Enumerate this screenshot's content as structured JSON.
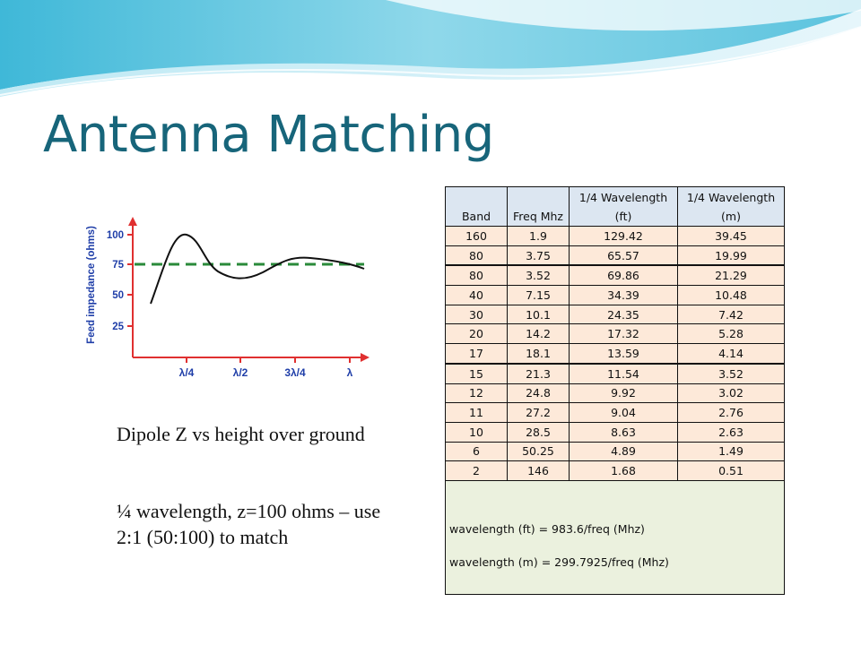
{
  "slide": {
    "title": "Antenna Matching",
    "caption_line1": "Dipole Z vs height over ground",
    "caption_line2": "¼ wavelength, z=100 ohms – use 2:1 (50:100) to match"
  },
  "graph": {
    "ylabel": "Feed impedance (ohms)",
    "yticks": [
      "100",
      "75",
      "50",
      "25"
    ],
    "xticks": [
      "λ/4",
      "λ/2",
      "3λ/4",
      "λ"
    ],
    "colors": {
      "axis": "#e03030",
      "curve": "#111111",
      "reference": "#2a8a3a",
      "labels": "#1f3ea8"
    }
  },
  "table": {
    "header": {
      "band": "Band",
      "freq": "Freq Mhz",
      "ft_line1": "1/4 Wavelength",
      "ft_line2": "(ft)",
      "m_line1": "1/4 Wavelength",
      "m_line2": "(m)"
    },
    "rows": [
      [
        "160",
        "1.9",
        "129.42",
        "39.45"
      ],
      [
        "80",
        "3.75",
        "65.57",
        "19.99"
      ],
      [
        "80",
        "3.52",
        "69.86",
        "21.29"
      ],
      [
        "40",
        "7.15",
        "34.39",
        "10.48"
      ],
      [
        "30",
        "10.1",
        "24.35",
        "7.42"
      ],
      [
        "20",
        "14.2",
        "17.32",
        "5.28"
      ],
      [
        "17",
        "18.1",
        "13.59",
        "4.14"
      ],
      [
        "15",
        "21.3",
        "11.54",
        "3.52"
      ],
      [
        "12",
        "24.8",
        "9.92",
        "3.02"
      ],
      [
        "11",
        "27.2",
        "9.04",
        "2.76"
      ],
      [
        "10",
        "28.5",
        "8.63",
        "2.63"
      ],
      [
        "6",
        "50.25",
        "4.89",
        "1.49"
      ],
      [
        "2",
        "146",
        "1.68",
        "0.51"
      ]
    ],
    "note_ft": "wavelength (ft) = 983.6/freq (Mhz)",
    "note_m": "wavelength (m) = 299.7925/freq (Mhz)"
  },
  "colors": {
    "title": "#17657a",
    "header_fill": "#dce6f1",
    "row_fill": "#fde9d9",
    "note_fill": "#ebf1de"
  }
}
